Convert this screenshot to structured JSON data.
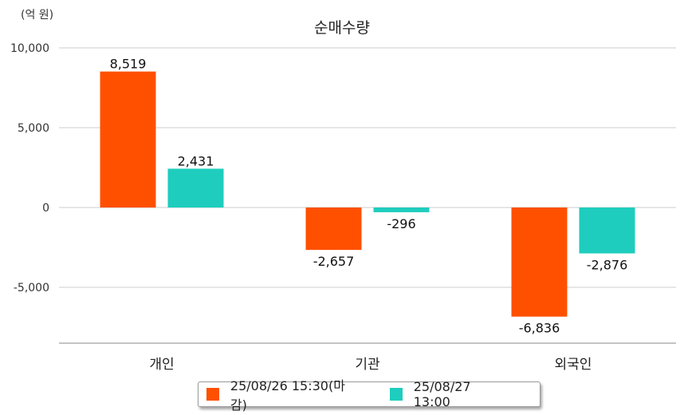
{
  "chart_data": {
    "type": "bar",
    "title": "순매수량",
    "unit_label": "(억 원)",
    "categories": [
      "개인",
      "기관",
      "외국인"
    ],
    "series": [
      {
        "name": "25/08/26 15:30(마감)",
        "color": "#ff5000",
        "values": [
          8519,
          -2657,
          -6836
        ]
      },
      {
        "name": "25/08/27 13:00",
        "color": "#1ecdbd",
        "values": [
          2431,
          -296,
          -2876
        ]
      }
    ],
    "data_labels": [
      [
        "8,519",
        "-2,657",
        "-6,836"
      ],
      [
        "2,431",
        "-296",
        "-2,876"
      ]
    ],
    "y_ticks": [
      10000,
      5000,
      0,
      -5000
    ],
    "y_tick_labels": [
      "10,000",
      "5,000",
      "0",
      "-5,000"
    ],
    "ylim": [
      -8500,
      10000
    ],
    "grid": true,
    "legend_position": "bottom"
  }
}
